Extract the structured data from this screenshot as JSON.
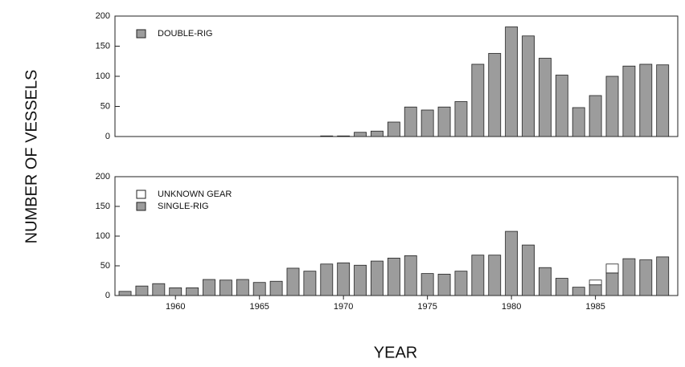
{
  "ylabel": "NUMBER OF VESSELS",
  "xlabel": "YEAR",
  "chart_data": [
    {
      "type": "bar",
      "stacked": true,
      "x": [
        1957,
        1958,
        1959,
        1960,
        1961,
        1962,
        1963,
        1964,
        1965,
        1966,
        1967,
        1968,
        1969,
        1970,
        1971,
        1972,
        1973,
        1974,
        1975,
        1976,
        1977,
        1978,
        1979,
        1980,
        1981,
        1982,
        1983,
        1984,
        1985,
        1986,
        1987,
        1988,
        1989
      ],
      "series": [
        {
          "name": "DOUBLE-RIG",
          "color": "#9c9c9c",
          "values": [
            0,
            0,
            0,
            0,
            0,
            0,
            0,
            0,
            0,
            0,
            0,
            0,
            1,
            1,
            7,
            9,
            24,
            49,
            44,
            49,
            58,
            120,
            138,
            182,
            167,
            130,
            102,
            48,
            68,
            100,
            117,
            120,
            119
          ]
        }
      ],
      "xlim": [
        1956.4,
        1989.9
      ],
      "ylim": [
        0,
        200
      ],
      "yticks": [
        0,
        50,
        100,
        150,
        200
      ]
    },
    {
      "type": "bar",
      "stacked": true,
      "x": [
        1957,
        1958,
        1959,
        1960,
        1961,
        1962,
        1963,
        1964,
        1965,
        1966,
        1967,
        1968,
        1969,
        1970,
        1971,
        1972,
        1973,
        1974,
        1975,
        1976,
        1977,
        1978,
        1979,
        1980,
        1981,
        1982,
        1983,
        1984,
        1985,
        1986,
        1987,
        1988,
        1989
      ],
      "series": [
        {
          "name": "UNKNOWN GEAR",
          "color": "#ffffff",
          "values": [
            0,
            0,
            0,
            0,
            0,
            0,
            0,
            0,
            0,
            0,
            0,
            0,
            0,
            0,
            0,
            0,
            0,
            0,
            0,
            0,
            0,
            0,
            0,
            0,
            0,
            0,
            0,
            0,
            8,
            15,
            0,
            0,
            0
          ]
        },
        {
          "name": "SINGLE-RIG",
          "color": "#9c9c9c",
          "values": [
            7,
            16,
            20,
            13,
            13,
            27,
            26,
            27,
            22,
            24,
            46,
            41,
            53,
            55,
            51,
            58,
            63,
            67,
            37,
            36,
            41,
            68,
            68,
            108,
            85,
            47,
            29,
            14,
            18,
            38,
            62,
            60,
            65
          ]
        }
      ],
      "xlim": [
        1956.4,
        1989.9
      ],
      "xticks": [
        1960,
        1965,
        1970,
        1975,
        1980,
        1985
      ],
      "ylim": [
        0,
        200
      ],
      "yticks": [
        0,
        50,
        100,
        150,
        200
      ]
    }
  ]
}
